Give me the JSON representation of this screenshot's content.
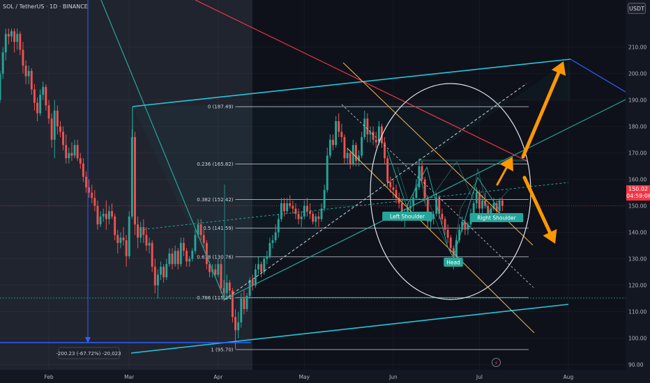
{
  "header": {
    "title": "SOL / TetherUS · 1D · BINANCE",
    "currency_button": "USDT"
  },
  "price_tag": {
    "price": "150.02",
    "countdown": "04:59:06"
  },
  "chart_data": {
    "type": "candlestick",
    "symbol": "SOL / TetherUS",
    "interval": "1D",
    "exchange": "BINANCE",
    "y_axis": {
      "ticks": [
        210,
        200,
        190,
        180,
        170,
        160,
        150,
        140,
        130,
        120,
        110,
        100,
        90
      ],
      "ylim": [
        87,
        217
      ],
      "side": "right"
    },
    "x_axis": {
      "labels": [
        {
          "text": "Feb",
          "date": "2025-02-01"
        },
        {
          "text": "Mar",
          "date": "2025-03-01"
        },
        {
          "text": "Apr",
          "date": "2025-04-01"
        },
        {
          "text": "May",
          "date": "2025-05-01"
        },
        {
          "text": "Jun",
          "date": "2025-06-01"
        },
        {
          "text": "Jul",
          "date": "2025-07-01"
        },
        {
          "text": "Aug",
          "date": "2025-08-01"
        }
      ]
    },
    "last_price": 150.02,
    "up_color": "#26a69a",
    "down_color": "#ef5350",
    "fib_levels": [
      {
        "label": "0 (187.49)",
        "price": 187.49
      },
      {
        "label": "0.236 (165.82)",
        "price": 165.82
      },
      {
        "label": "0.382 (152.42)",
        "price": 152.42
      },
      {
        "label": "0.5 (141.59)",
        "price": 141.59
      },
      {
        "label": "0.618 (130.76)",
        "price": 130.76
      },
      {
        "label": "0.786 (115.34)",
        "price": 115.34
      },
      {
        "label": "1 (95.70)",
        "price": 95.7
      }
    ],
    "pattern_labels": [
      "Left Shoulder",
      "Head",
      "Right Shoulder"
    ],
    "measurement": "-200.23 (-67.72%) -20,023",
    "candles": [
      [
        "2025-01-01",
        192,
        195,
        189,
        193
      ],
      [
        "2025-01-02",
        193,
        200,
        191,
        199
      ],
      [
        "2025-01-03",
        199,
        208,
        197,
        206
      ],
      [
        "2025-01-04",
        206,
        212,
        203,
        209
      ],
      [
        "2025-01-05",
        209,
        213,
        204,
        205
      ],
      [
        "2025-01-06",
        205,
        217,
        203,
        215
      ],
      [
        "2025-01-07",
        215,
        216,
        199,
        201
      ],
      [
        "2025-01-08",
        201,
        203,
        190,
        194
      ],
      [
        "2025-01-09",
        194,
        197,
        187,
        189
      ],
      [
        "2025-01-10",
        189,
        196,
        187,
        193
      ],
      [
        "2025-01-11",
        193,
        197,
        191,
        195
      ],
      [
        "2025-01-12",
        195,
        198,
        189,
        191
      ],
      [
        "2025-01-13",
        191,
        193,
        182,
        186
      ],
      [
        "2025-01-14",
        186,
        193,
        185,
        190
      ],
      [
        "2025-01-15",
        190,
        201,
        189,
        200
      ],
      [
        "2025-01-16",
        200,
        210,
        198,
        208
      ],
      [
        "2025-01-17",
        208,
        217,
        205,
        215
      ],
      [
        "2025-01-18",
        215,
        217,
        211,
        214
      ],
      [
        "2025-01-19",
        214,
        217,
        212,
        216
      ],
      [
        "2025-01-20",
        216,
        217,
        208,
        212
      ],
      [
        "2025-01-21",
        212,
        217,
        209,
        215
      ],
      [
        "2025-01-22",
        215,
        216,
        207,
        209
      ],
      [
        "2025-01-23",
        209,
        212,
        200,
        203
      ],
      [
        "2025-01-24",
        203,
        205,
        196,
        199
      ],
      [
        "2025-01-25",
        199,
        203,
        196,
        201
      ],
      [
        "2025-01-26",
        201,
        202,
        192,
        194
      ],
      [
        "2025-01-27",
        194,
        196,
        186,
        189
      ],
      [
        "2025-01-28",
        189,
        191,
        182,
        185
      ],
      [
        "2025-01-29",
        185,
        194,
        184,
        192
      ],
      [
        "2025-01-30",
        192,
        197,
        190,
        195
      ],
      [
        "2025-01-31",
        195,
        196,
        186,
        188
      ],
      [
        "2025-02-01",
        188,
        190,
        181,
        183
      ],
      [
        "2025-02-02",
        183,
        185,
        172,
        175
      ],
      [
        "2025-02-03",
        175,
        190,
        168,
        186
      ],
      [
        "2025-02-04",
        186,
        188,
        177,
        180
      ],
      [
        "2025-02-05",
        180,
        182,
        176,
        178
      ],
      [
        "2025-02-06",
        178,
        180,
        171,
        173
      ],
      [
        "2025-02-07",
        173,
        177,
        166,
        168
      ],
      [
        "2025-02-08",
        168,
        172,
        166,
        170
      ],
      [
        "2025-02-09",
        170,
        174,
        167,
        169
      ],
      [
        "2025-02-10",
        169,
        175,
        168,
        173
      ],
      [
        "2025-02-11",
        173,
        175,
        167,
        168
      ],
      [
        "2025-02-12",
        168,
        170,
        164,
        166
      ],
      [
        "2025-02-13",
        166,
        168,
        159,
        161
      ],
      [
        "2025-02-14",
        161,
        163,
        155,
        157
      ],
      [
        "2025-02-15",
        157,
        160,
        153,
        155
      ],
      [
        "2025-02-16",
        155,
        158,
        151,
        153
      ],
      [
        "2025-02-17",
        153,
        156,
        148,
        150
      ],
      [
        "2025-02-18",
        150,
        152,
        141,
        143
      ],
      [
        "2025-02-19",
        143,
        148,
        142,
        146
      ],
      [
        "2025-02-20",
        146,
        149,
        144,
        147
      ],
      [
        "2025-02-21",
        147,
        152,
        141,
        145
      ],
      [
        "2025-02-22",
        145,
        150,
        143,
        148
      ],
      [
        "2025-02-23",
        148,
        151,
        145,
        146
      ],
      [
        "2025-02-24",
        146,
        147,
        137,
        139
      ],
      [
        "2025-02-25",
        139,
        141,
        132,
        136
      ],
      [
        "2025-02-26",
        136,
        140,
        134,
        138
      ],
      [
        "2025-02-27",
        138,
        142,
        135,
        137
      ],
      [
        "2025-02-28",
        137,
        139,
        127,
        131
      ],
      [
        "2025-03-01",
        131,
        148,
        130,
        146
      ],
      [
        "2025-03-02",
        146,
        179,
        145,
        176
      ],
      [
        "2025-03-03",
        176,
        178,
        139,
        143
      ],
      [
        "2025-03-04",
        143,
        146,
        134,
        138
      ],
      [
        "2025-03-05",
        138,
        144,
        136,
        142
      ],
      [
        "2025-03-06",
        142,
        145,
        136,
        139
      ],
      [
        "2025-03-07",
        139,
        142,
        133,
        135
      ],
      [
        "2025-03-08",
        135,
        138,
        132,
        136
      ],
      [
        "2025-03-09",
        136,
        137,
        125,
        127
      ],
      [
        "2025-03-10",
        127,
        130,
        117,
        120
      ],
      [
        "2025-03-11",
        120,
        126,
        115,
        124
      ],
      [
        "2025-03-12",
        124,
        129,
        122,
        127
      ],
      [
        "2025-03-13",
        127,
        128,
        121,
        123
      ],
      [
        "2025-03-14",
        123,
        130,
        122,
        128
      ],
      [
        "2025-03-15",
        128,
        134,
        127,
        132
      ],
      [
        "2025-03-16",
        132,
        134,
        126,
        128
      ],
      [
        "2025-03-17",
        128,
        135,
        127,
        133
      ],
      [
        "2025-03-18",
        133,
        134,
        126,
        128
      ],
      [
        "2025-03-19",
        128,
        138,
        127,
        136
      ],
      [
        "2025-03-20",
        136,
        138,
        131,
        133
      ],
      [
        "2025-03-21",
        133,
        134,
        127,
        129
      ],
      [
        "2025-03-22",
        129,
        131,
        127,
        130
      ],
      [
        "2025-03-23",
        130,
        134,
        129,
        133
      ],
      [
        "2025-03-24",
        133,
        141,
        132,
        139
      ],
      [
        "2025-03-25",
        139,
        145,
        138,
        143
      ],
      [
        "2025-03-26",
        143,
        145,
        137,
        139
      ],
      [
        "2025-03-27",
        139,
        141,
        134,
        136
      ],
      [
        "2025-03-28",
        136,
        137,
        126,
        128
      ],
      [
        "2025-03-29",
        128,
        129,
        123,
        125
      ],
      [
        "2025-03-30",
        125,
        128,
        123,
        126
      ],
      [
        "2025-03-31",
        126,
        128,
        123,
        124
      ],
      [
        "2025-04-01",
        124,
        130,
        123,
        128
      ],
      [
        "2025-04-02",
        128,
        130,
        117,
        119
      ],
      [
        "2025-04-03",
        119,
        122,
        114,
        117
      ],
      [
        "2025-04-04",
        117,
        124,
        115,
        121
      ],
      [
        "2025-04-05",
        121,
        122,
        116,
        118
      ],
      [
        "2025-04-06",
        118,
        119,
        106,
        108
      ],
      [
        "2025-04-07",
        108,
        111,
        96,
        103
      ],
      [
        "2025-04-08",
        103,
        110,
        100,
        106
      ],
      [
        "2025-04-09",
        106,
        117,
        104,
        115
      ],
      [
        "2025-04-10",
        115,
        118,
        109,
        111
      ],
      [
        "2025-04-11",
        111,
        117,
        110,
        116
      ],
      [
        "2025-04-12",
        116,
        123,
        115,
        122
      ],
      [
        "2025-04-13",
        122,
        124,
        118,
        120
      ],
      [
        "2025-04-14",
        120,
        128,
        119,
        126
      ],
      [
        "2025-04-15",
        126,
        131,
        124,
        128
      ],
      [
        "2025-04-16",
        128,
        129,
        123,
        125
      ],
      [
        "2025-04-17",
        125,
        131,
        124,
        130
      ],
      [
        "2025-04-18",
        130,
        133,
        128,
        131
      ],
      [
        "2025-04-19",
        131,
        138,
        130,
        136
      ],
      [
        "2025-04-20",
        136,
        139,
        134,
        137
      ],
      [
        "2025-04-21",
        137,
        143,
        136,
        140
      ],
      [
        "2025-04-22",
        140,
        147,
        138,
        145
      ],
      [
        "2025-04-23",
        145,
        153,
        144,
        151
      ],
      [
        "2025-04-24",
        151,
        153,
        146,
        148
      ],
      [
        "2025-04-25",
        148,
        153,
        147,
        151
      ],
      [
        "2025-04-26",
        151,
        154,
        149,
        150
      ],
      [
        "2025-04-27",
        150,
        152,
        147,
        149
      ],
      [
        "2025-04-28",
        149,
        151,
        145,
        147
      ],
      [
        "2025-04-29",
        147,
        149,
        143,
        145
      ],
      [
        "2025-04-30",
        145,
        148,
        142,
        146
      ],
      [
        "2025-05-01",
        146,
        152,
        145,
        150
      ],
      [
        "2025-05-02",
        150,
        153,
        146,
        148
      ],
      [
        "2025-05-03",
        148,
        151,
        145,
        147
      ],
      [
        "2025-05-04",
        147,
        148,
        143,
        144
      ],
      [
        "2025-05-05",
        144,
        147,
        142,
        146
      ],
      [
        "2025-05-06",
        146,
        148,
        142,
        145
      ],
      [
        "2025-05-07",
        145,
        151,
        144,
        149
      ],
      [
        "2025-05-08",
        149,
        158,
        148,
        156
      ],
      [
        "2025-05-09",
        156,
        172,
        155,
        169
      ],
      [
        "2025-05-10",
        169,
        177,
        168,
        175
      ],
      [
        "2025-05-11",
        175,
        177,
        171,
        173
      ],
      [
        "2025-05-12",
        173,
        184,
        172,
        182
      ],
      [
        "2025-05-13",
        182,
        185,
        176,
        178
      ],
      [
        "2025-05-14",
        178,
        181,
        174,
        176
      ],
      [
        "2025-05-15",
        176,
        177,
        166,
        168
      ],
      [
        "2025-05-16",
        168,
        172,
        166,
        170
      ],
      [
        "2025-05-17",
        170,
        171,
        164,
        166
      ],
      [
        "2025-05-18",
        166,
        175,
        165,
        173
      ],
      [
        "2025-05-19",
        173,
        174,
        165,
        167
      ],
      [
        "2025-05-20",
        167,
        171,
        165,
        169
      ],
      [
        "2025-05-21",
        169,
        178,
        168,
        176
      ],
      [
        "2025-05-22",
        176,
        186,
        175,
        183
      ],
      [
        "2025-05-23",
        183,
        185,
        174,
        177
      ],
      [
        "2025-05-24",
        177,
        180,
        174,
        178
      ],
      [
        "2025-05-25",
        178,
        180,
        173,
        175
      ],
      [
        "2025-05-26",
        175,
        178,
        172,
        174
      ],
      [
        "2025-05-27",
        174,
        182,
        173,
        180
      ],
      [
        "2025-05-28",
        180,
        181,
        172,
        174
      ],
      [
        "2025-05-29",
        174,
        176,
        166,
        168
      ],
      [
        "2025-05-30",
        168,
        169,
        157,
        159
      ],
      [
        "2025-05-31",
        159,
        161,
        155,
        157
      ],
      [
        "2025-06-01",
        157,
        160,
        153,
        156
      ],
      [
        "2025-06-02",
        156,
        158,
        151,
        153
      ],
      [
        "2025-06-03",
        153,
        155,
        149,
        151
      ],
      [
        "2025-06-04",
        151,
        153,
        144,
        146
      ],
      [
        "2025-06-05",
        146,
        149,
        142,
        147
      ],
      [
        "2025-06-06",
        147,
        151,
        145,
        149
      ],
      [
        "2025-06-07",
        149,
        152,
        146,
        150
      ],
      [
        "2025-06-08",
        150,
        155,
        148,
        153
      ],
      [
        "2025-06-09",
        153,
        160,
        152,
        157
      ],
      [
        "2025-06-10",
        157,
        168,
        156,
        165
      ],
      [
        "2025-06-11",
        165,
        167,
        158,
        160
      ],
      [
        "2025-06-12",
        160,
        161,
        151,
        153
      ],
      [
        "2025-06-13",
        153,
        154,
        142,
        144
      ],
      [
        "2025-06-14",
        144,
        147,
        141,
        145
      ],
      [
        "2025-06-15",
        145,
        148,
        143,
        147
      ],
      [
        "2025-06-16",
        147,
        155,
        146,
        153
      ],
      [
        "2025-06-17",
        153,
        154,
        145,
        147
      ],
      [
        "2025-06-18",
        147,
        149,
        143,
        145
      ],
      [
        "2025-06-19",
        145,
        146,
        139,
        141
      ],
      [
        "2025-06-20",
        141,
        143,
        136,
        138
      ],
      [
        "2025-06-21",
        138,
        139,
        132,
        134
      ],
      [
        "2025-06-22",
        134,
        135,
        126,
        131
      ],
      [
        "2025-06-23",
        131,
        139,
        130,
        137
      ],
      [
        "2025-06-24",
        137,
        143,
        136,
        141
      ],
      [
        "2025-06-25",
        141,
        146,
        140,
        144
      ],
      [
        "2025-06-26",
        144,
        145,
        139,
        141
      ],
      [
        "2025-06-27",
        141,
        144,
        139,
        143
      ],
      [
        "2025-06-28",
        143,
        149,
        142,
        147
      ],
      [
        "2025-06-29",
        147,
        152,
        146,
        151
      ],
      [
        "2025-06-30",
        151,
        157,
        149,
        155
      ],
      [
        "2025-07-01",
        155,
        156,
        147,
        149
      ],
      [
        "2025-07-02",
        149,
        154,
        147,
        152
      ],
      [
        "2025-07-03",
        152,
        155,
        149,
        150
      ],
      [
        "2025-07-04",
        150,
        151,
        145,
        147
      ],
      [
        "2025-07-05",
        147,
        150,
        146,
        149
      ],
      [
        "2025-07-06",
        149,
        153,
        148,
        151
      ],
      [
        "2025-07-07",
        151,
        152,
        146,
        148
      ],
      [
        "2025-07-08",
        148,
        153,
        147,
        152
      ],
      [
        "2025-07-09",
        152,
        153,
        148,
        150
      ]
    ]
  }
}
